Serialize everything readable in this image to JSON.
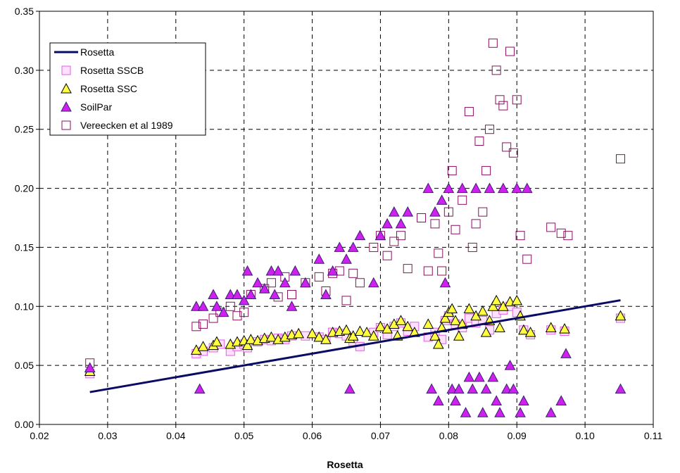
{
  "chart_data": {
    "type": "scatter",
    "title": "",
    "xlabel": "Rosetta",
    "ylabel": "",
    "xlim": [
      0.02,
      0.11
    ],
    "ylim": [
      0,
      0.35
    ],
    "xticks": [
      "0.02",
      "0.03",
      "0.04",
      "0.05",
      "0.06",
      "0.07",
      "0.08",
      "0.09",
      "0.10",
      "0.11"
    ],
    "yticks": [
      "0.00",
      "0.05",
      "0.10",
      "0.15",
      "0.20",
      "0.25",
      "0.30",
      "0.35"
    ],
    "grid": true,
    "legend_position": "top-left",
    "series": [
      {
        "name": "Rosetta",
        "kind": "line",
        "color": "#0a0a64",
        "points": [
          [
            0.0274,
            0.0274
          ],
          [
            0.1052,
            0.1052
          ]
        ]
      },
      {
        "name": "Rosetta SSCB",
        "kind": "square",
        "fill": "#ffe0ff",
        "stroke": "#e060e0",
        "points": [
          [
            0.0274,
            0.043
          ],
          [
            0.043,
            0.06
          ],
          [
            0.044,
            0.062
          ],
          [
            0.0455,
            0.065
          ],
          [
            0.0465,
            0.068
          ],
          [
            0.048,
            0.062
          ],
          [
            0.049,
            0.066
          ],
          [
            0.05,
            0.068
          ],
          [
            0.0505,
            0.065
          ],
          [
            0.052,
            0.07
          ],
          [
            0.053,
            0.072
          ],
          [
            0.054,
            0.071
          ],
          [
            0.055,
            0.073
          ],
          [
            0.056,
            0.072
          ],
          [
            0.057,
            0.075
          ],
          [
            0.059,
            0.075
          ],
          [
            0.061,
            0.074
          ],
          [
            0.062,
            0.072
          ],
          [
            0.063,
            0.078
          ],
          [
            0.064,
            0.077
          ],
          [
            0.065,
            0.075
          ],
          [
            0.066,
            0.07
          ],
          [
            0.067,
            0.066
          ],
          [
            0.069,
            0.078
          ],
          [
            0.07,
            0.082
          ],
          [
            0.071,
            0.076
          ],
          [
            0.072,
            0.083
          ],
          [
            0.073,
            0.086
          ],
          [
            0.074,
            0.079
          ],
          [
            0.075,
            0.083
          ],
          [
            0.077,
            0.074
          ],
          [
            0.078,
            0.078
          ],
          [
            0.079,
            0.072
          ],
          [
            0.0795,
            0.088
          ],
          [
            0.08,
            0.092
          ],
          [
            0.081,
            0.085
          ],
          [
            0.082,
            0.082
          ],
          [
            0.083,
            0.09
          ],
          [
            0.084,
            0.086
          ],
          [
            0.085,
            0.088
          ],
          [
            0.086,
            0.08
          ],
          [
            0.087,
            0.094
          ],
          [
            0.088,
            0.097
          ],
          [
            0.089,
            0.1
          ],
          [
            0.09,
            0.095
          ],
          [
            0.091,
            0.08
          ],
          [
            0.092,
            0.076
          ],
          [
            0.095,
            0.08
          ],
          [
            0.097,
            0.079
          ],
          [
            0.1052,
            0.09
          ]
        ]
      },
      {
        "name": "Rosetta SSC",
        "kind": "triangle",
        "fill": "#ffff40",
        "stroke": "#000000",
        "points": [
          [
            0.0274,
            0.045
          ],
          [
            0.043,
            0.063
          ],
          [
            0.044,
            0.066
          ],
          [
            0.0455,
            0.067
          ],
          [
            0.046,
            0.07
          ],
          [
            0.048,
            0.068
          ],
          [
            0.049,
            0.07
          ],
          [
            0.05,
            0.071
          ],
          [
            0.0505,
            0.067
          ],
          [
            0.051,
            0.072
          ],
          [
            0.052,
            0.071
          ],
          [
            0.053,
            0.073
          ],
          [
            0.054,
            0.074
          ],
          [
            0.055,
            0.072
          ],
          [
            0.056,
            0.074
          ],
          [
            0.057,
            0.076
          ],
          [
            0.058,
            0.077
          ],
          [
            0.06,
            0.077
          ],
          [
            0.061,
            0.074
          ],
          [
            0.062,
            0.072
          ],
          [
            0.063,
            0.078
          ],
          [
            0.064,
            0.079
          ],
          [
            0.065,
            0.08
          ],
          [
            0.0655,
            0.073
          ],
          [
            0.066,
            0.075
          ],
          [
            0.067,
            0.079
          ],
          [
            0.068,
            0.078
          ],
          [
            0.069,
            0.075
          ],
          [
            0.07,
            0.083
          ],
          [
            0.071,
            0.081
          ],
          [
            0.072,
            0.085
          ],
          [
            0.0725,
            0.075
          ],
          [
            0.073,
            0.088
          ],
          [
            0.074,
            0.083
          ],
          [
            0.075,
            0.078
          ],
          [
            0.077,
            0.085
          ],
          [
            0.078,
            0.075
          ],
          [
            0.0785,
            0.068
          ],
          [
            0.079,
            0.082
          ],
          [
            0.0795,
            0.09
          ],
          [
            0.08,
            0.095
          ],
          [
            0.0805,
            0.098
          ],
          [
            0.081,
            0.088
          ],
          [
            0.0815,
            0.075
          ],
          [
            0.082,
            0.085
          ],
          [
            0.083,
            0.098
          ],
          [
            0.084,
            0.092
          ],
          [
            0.085,
            0.096
          ],
          [
            0.0855,
            0.078
          ],
          [
            0.086,
            0.088
          ],
          [
            0.0865,
            0.1
          ],
          [
            0.087,
            0.105
          ],
          [
            0.0875,
            0.082
          ],
          [
            0.088,
            0.1
          ],
          [
            0.089,
            0.104
          ],
          [
            0.09,
            0.105
          ],
          [
            0.0905,
            0.092
          ],
          [
            0.091,
            0.08
          ],
          [
            0.092,
            0.078
          ],
          [
            0.095,
            0.082
          ],
          [
            0.097,
            0.081
          ],
          [
            0.1052,
            0.092
          ]
        ]
      },
      {
        "name": "SoilPar",
        "kind": "triangle",
        "fill": "#d020f0",
        "stroke": "#3a2070",
        "points": [
          [
            0.0274,
            0.048
          ],
          [
            0.043,
            0.1
          ],
          [
            0.044,
            0.1
          ],
          [
            0.0435,
            0.03
          ],
          [
            0.0455,
            0.11
          ],
          [
            0.046,
            0.1
          ],
          [
            0.047,
            0.095
          ],
          [
            0.048,
            0.11
          ],
          [
            0.049,
            0.11
          ],
          [
            0.05,
            0.105
          ],
          [
            0.0505,
            0.13
          ],
          [
            0.051,
            0.11
          ],
          [
            0.052,
            0.12
          ],
          [
            0.053,
            0.115
          ],
          [
            0.054,
            0.13
          ],
          [
            0.0545,
            0.11
          ],
          [
            0.055,
            0.13
          ],
          [
            0.056,
            0.12
          ],
          [
            0.057,
            0.1
          ],
          [
            0.0575,
            0.13
          ],
          [
            0.059,
            0.12
          ],
          [
            0.061,
            0.14
          ],
          [
            0.062,
            0.11
          ],
          [
            0.063,
            0.13
          ],
          [
            0.064,
            0.15
          ],
          [
            0.065,
            0.14
          ],
          [
            0.0655,
            0.03
          ],
          [
            0.066,
            0.15
          ],
          [
            0.067,
            0.16
          ],
          [
            0.069,
            0.12
          ],
          [
            0.07,
            0.16
          ],
          [
            0.071,
            0.17
          ],
          [
            0.072,
            0.18
          ],
          [
            0.073,
            0.17
          ],
          [
            0.074,
            0.18
          ],
          [
            0.077,
            0.2
          ],
          [
            0.0775,
            0.03
          ],
          [
            0.078,
            0.18
          ],
          [
            0.0785,
            0.02
          ],
          [
            0.079,
            0.19
          ],
          [
            0.0795,
            0.12
          ],
          [
            0.08,
            0.2
          ],
          [
            0.0805,
            0.03
          ],
          [
            0.081,
            0.02
          ],
          [
            0.0815,
            0.03
          ],
          [
            0.082,
            0.2
          ],
          [
            0.0825,
            0.01
          ],
          [
            0.083,
            0.04
          ],
          [
            0.0835,
            0.03
          ],
          [
            0.084,
            0.2
          ],
          [
            0.0845,
            0.04
          ],
          [
            0.085,
            0.01
          ],
          [
            0.0855,
            0.03
          ],
          [
            0.086,
            0.2
          ],
          [
            0.0865,
            0.04
          ],
          [
            0.087,
            0.02
          ],
          [
            0.0875,
            0.01
          ],
          [
            0.088,
            0.2
          ],
          [
            0.0885,
            0.03
          ],
          [
            0.089,
            0.05
          ],
          [
            0.0895,
            0.03
          ],
          [
            0.09,
            0.2
          ],
          [
            0.0905,
            0.01
          ],
          [
            0.091,
            0.02
          ],
          [
            0.0915,
            0.2
          ],
          [
            0.095,
            0.01
          ],
          [
            0.0965,
            0.02
          ],
          [
            0.0972,
            0.06
          ],
          [
            0.1052,
            0.03
          ]
        ]
      },
      {
        "name": "Vereecken et al 1989",
        "kind": "square",
        "fill": "none",
        "stroke": "#8a1060",
        "points": [
          [
            0.0274,
            0.052
          ],
          [
            0.043,
            0.083
          ],
          [
            0.044,
            0.085
          ],
          [
            0.0455,
            0.09
          ],
          [
            0.0465,
            0.095
          ],
          [
            0.048,
            0.1
          ],
          [
            0.049,
            0.092
          ],
          [
            0.05,
            0.095
          ],
          [
            0.051,
            0.11
          ],
          [
            0.053,
            0.115
          ],
          [
            0.054,
            0.12
          ],
          [
            0.055,
            0.108
          ],
          [
            0.056,
            0.125
          ],
          [
            0.057,
            0.11
          ],
          [
            0.059,
            0.12
          ],
          [
            0.061,
            0.125
          ],
          [
            0.062,
            0.113
          ],
          [
            0.063,
            0.128
          ],
          [
            0.064,
            0.13
          ],
          [
            0.065,
            0.105
          ],
          [
            0.066,
            0.128
          ],
          [
            0.067,
            0.12
          ],
          [
            0.069,
            0.15
          ],
          [
            0.07,
            0.16
          ],
          [
            0.071,
            0.143
          ],
          [
            0.072,
            0.155
          ],
          [
            0.073,
            0.16
          ],
          [
            0.074,
            0.132
          ],
          [
            0.076,
            0.175
          ],
          [
            0.077,
            0.13
          ],
          [
            0.078,
            0.17
          ],
          [
            0.0785,
            0.145
          ],
          [
            0.079,
            0.13
          ],
          [
            0.08,
            0.18
          ],
          [
            0.0805,
            0.215
          ],
          [
            0.081,
            0.165
          ],
          [
            0.082,
            0.19
          ],
          [
            0.083,
            0.265
          ],
          [
            0.0835,
            0.15
          ],
          [
            0.084,
            0.17
          ],
          [
            0.0845,
            0.24
          ],
          [
            0.085,
            0.18
          ],
          [
            0.0855,
            0.215
          ],
          [
            0.086,
            0.25
          ],
          [
            0.0865,
            0.323
          ],
          [
            0.087,
            0.3
          ],
          [
            0.0875,
            0.275
          ],
          [
            0.088,
            0.27
          ],
          [
            0.0885,
            0.235
          ],
          [
            0.089,
            0.316
          ],
          [
            0.0895,
            0.23
          ],
          [
            0.09,
            0.275
          ],
          [
            0.0905,
            0.16
          ],
          [
            0.0915,
            0.14
          ],
          [
            0.095,
            0.167
          ],
          [
            0.0965,
            0.162
          ],
          [
            0.0975,
            0.16
          ],
          [
            0.1052,
            0.225
          ]
        ]
      }
    ]
  }
}
